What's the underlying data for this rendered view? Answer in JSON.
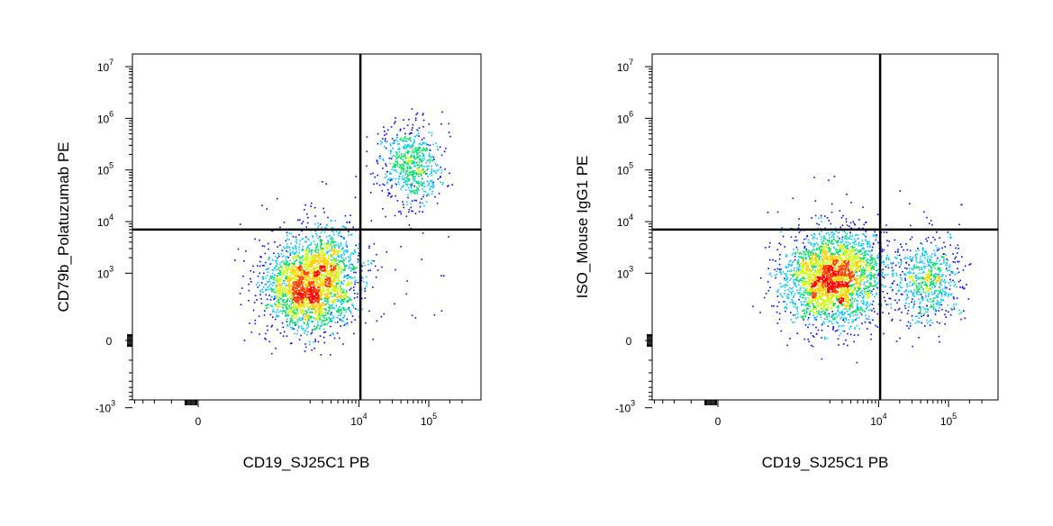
{
  "chart_data": [
    {
      "type": "scatter",
      "style": "flow-cytometry density dot plot (pseudocolor, blue-green-yellow-red by local density)",
      "xlabel": "CD19_SJ25C1 PB",
      "ylabel": "CD79b_Polatuzumab PE",
      "x_scale": "biexponential",
      "y_scale": "biexponential",
      "x_ticks": [
        {
          "value": 0,
          "base": "0",
          "exp": ""
        },
        {
          "value": 10000,
          "base": "10",
          "exp": "4"
        },
        {
          "value": 100000,
          "base": "10",
          "exp": "5"
        }
      ],
      "y_ticks": [
        {
          "value": -1000,
          "base": "-10",
          "exp": "3"
        },
        {
          "value": 0,
          "base": "0",
          "exp": ""
        },
        {
          "value": 1000,
          "base": "10",
          "exp": "3"
        },
        {
          "value": 10000,
          "base": "10",
          "exp": "4"
        },
        {
          "value": 100000,
          "base": "10",
          "exp": "5"
        },
        {
          "value": 1000000,
          "base": "10",
          "exp": "6"
        },
        {
          "value": 10000000,
          "base": "10",
          "exp": "7"
        }
      ],
      "quadrant_gate": {
        "x": 10500,
        "y": 7000
      },
      "populations": [
        {
          "x_center": 2000,
          "y_center": 600,
          "x_spread": 0.32,
          "y_spread": 0.45,
          "count": 2600
        },
        {
          "x_center": 55000,
          "y_center": 130000,
          "x_spread": 0.22,
          "y_spread": 0.38,
          "count": 650
        },
        {
          "x_center": 4500,
          "y_center": 3000,
          "x_spread": 0.25,
          "y_spread": 0.3,
          "count": 180
        }
      ],
      "grid": false,
      "legend": "none"
    },
    {
      "type": "scatter",
      "style": "flow-cytometry density dot plot (pseudocolor, blue-green-yellow-red by local density)",
      "xlabel": "CD19_SJ25C1 PB",
      "ylabel": "ISO_Mouse IgG1 PE",
      "x_scale": "biexponential",
      "y_scale": "biexponential",
      "x_ticks": [
        {
          "value": 0,
          "base": "0",
          "exp": ""
        },
        {
          "value": 10000,
          "base": "10",
          "exp": "4"
        },
        {
          "value": 100000,
          "base": "10",
          "exp": "5"
        }
      ],
      "y_ticks": [
        {
          "value": -1000,
          "base": "-10",
          "exp": "3"
        },
        {
          "value": 0,
          "base": "0",
          "exp": ""
        },
        {
          "value": 1000,
          "base": "10",
          "exp": "3"
        },
        {
          "value": 10000,
          "base": "10",
          "exp": "4"
        },
        {
          "value": 100000,
          "base": "10",
          "exp": "5"
        },
        {
          "value": 1000000,
          "base": "10",
          "exp": "6"
        },
        {
          "value": 10000000,
          "base": "10",
          "exp": "7"
        }
      ],
      "quadrant_gate": {
        "x": 10500,
        "y": 7000
      },
      "populations": [
        {
          "x_center": 2100,
          "y_center": 800,
          "x_spread": 0.35,
          "y_spread": 0.45,
          "count": 2700
        },
        {
          "x_center": 50000,
          "y_center": 700,
          "x_spread": 0.22,
          "y_spread": 0.4,
          "count": 650
        },
        {
          "x_center": 5000,
          "y_center": 2000,
          "x_spread": 0.3,
          "y_spread": 0.3,
          "count": 150
        }
      ],
      "grid": false,
      "legend": "none"
    }
  ],
  "palette": [
    "#0000ff",
    "#00c8ff",
    "#00e060",
    "#c8ff00",
    "#ffd000",
    "#ff4000",
    "#ff0000"
  ]
}
